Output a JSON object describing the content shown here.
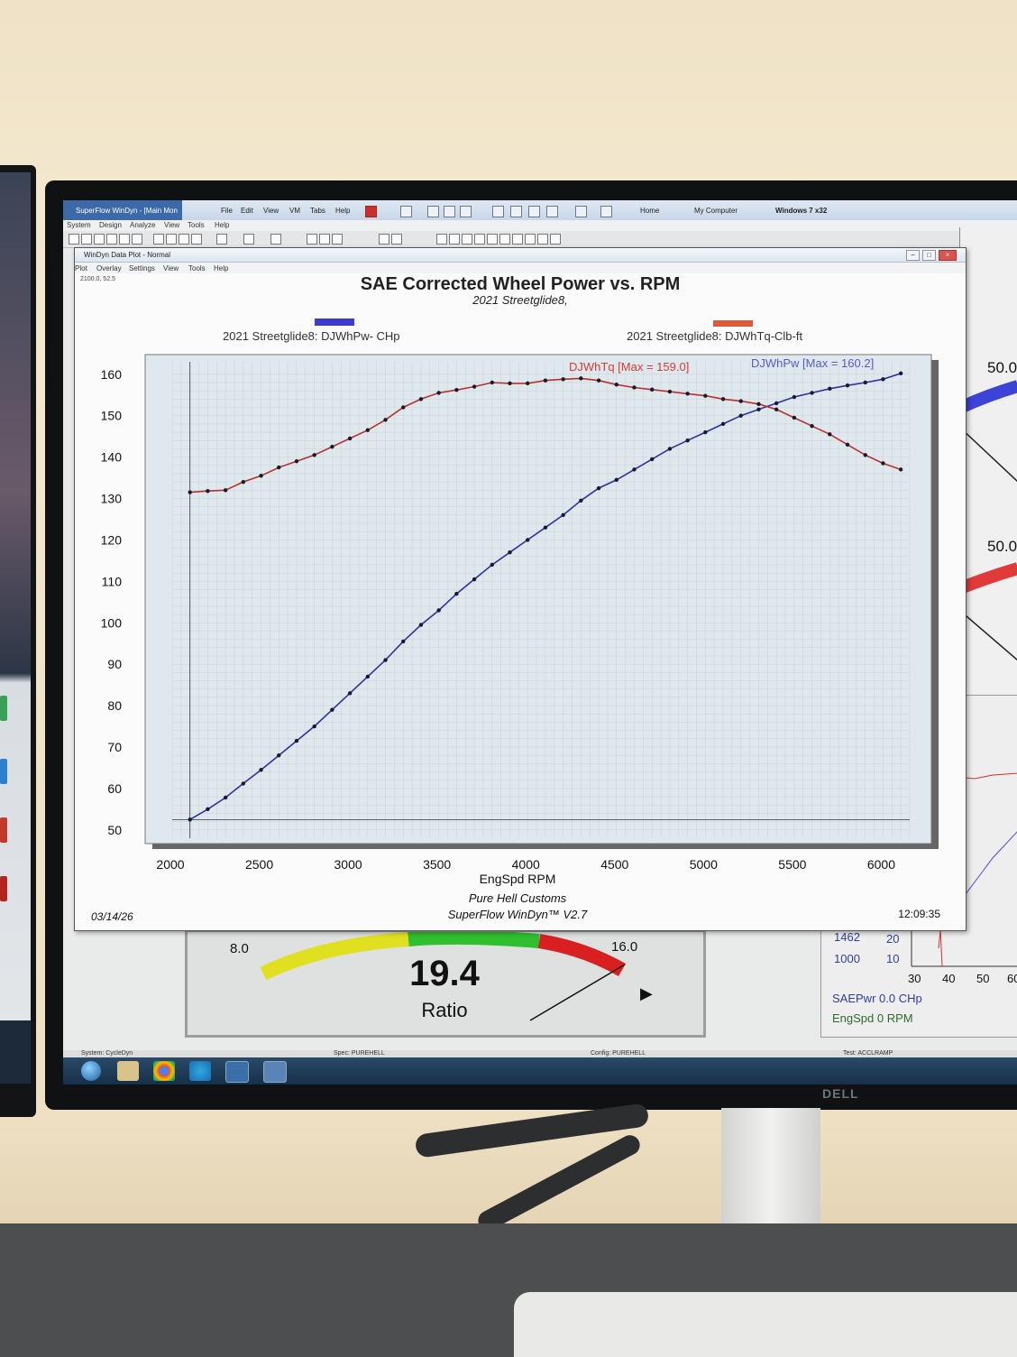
{
  "app": {
    "window_title": "SuperFlow WinDyn - [Main Mon",
    "menu": [
      "File",
      "Edit",
      "View",
      "VM",
      "Tabs",
      "Help"
    ],
    "submenu": [
      "System",
      "Design",
      "Analyze",
      "View",
      "Tools",
      "Help"
    ],
    "tabs": [
      "Home",
      "My Computer",
      "Windows 7 x32"
    ]
  },
  "plot_window": {
    "title": "WinDyn Data Plot - Normal",
    "menu": [
      "Plot",
      "Overlay",
      "Settings",
      "View",
      "Tools",
      "Help"
    ],
    "cursor_readout": "2100.0, 52.5",
    "date": "03/14/26",
    "time": "12:09:35",
    "footer_line1": "Pure Hell Customs",
    "footer_line2": "SuperFlow WinDyn™ V2.7"
  },
  "gauge": {
    "value": "19.4",
    "unit": "Ratio",
    "min_label": "8.0",
    "max_label": "16.0",
    "min": 8,
    "max": 16,
    "reading": 19.4
  },
  "side_panels": {
    "gauge_labels": [
      "50.0",
      "50.0"
    ],
    "small_chart": {
      "left_values": [
        "1462",
        "1000"
      ],
      "right_ticks": [
        "20",
        "10"
      ],
      "x_ticks": [
        "30",
        "40",
        "50",
        "60"
      ],
      "readout1": "SAEPwr 0.0  CHp",
      "readout2": "EngSpd 0  RPM"
    }
  },
  "status_row": [
    "System: CycleDyn",
    "Spec: PUREHELL",
    "Config: PUREHELL",
    "Test: ACCLRAMP"
  ],
  "colors": {
    "power": "#2b33a6",
    "torque": "#b8312f",
    "power_label": "#5a5ad0",
    "torque_label": "#d23c38",
    "plot_bg": "#dfe8ec",
    "grid": "#c9d3d8"
  },
  "chart_data": {
    "type": "line",
    "title": "SAE Corrected Wheel Power vs. RPM",
    "subtitle": "2021 Streetglide8,",
    "xlabel": "EngSpd  RPM",
    "ylabel": "",
    "xlim": [
      2000,
      6150
    ],
    "ylim": [
      48,
      163
    ],
    "x_ticks": [
      "2000",
      "2500",
      "3000",
      "3500",
      "4000",
      "4500",
      "5000",
      "5500",
      "6000"
    ],
    "y_ticks": [
      "50",
      "60",
      "70",
      "80",
      "90",
      "100",
      "110",
      "120",
      "130",
      "140",
      "150",
      "160"
    ],
    "legend": [
      {
        "label": "2021 Streetglide8: DJWhPw- CHp",
        "color": "#3b3bd0"
      },
      {
        "label": "2021 Streetglide8: DJWhTq-Clb-ft",
        "color": "#e05a3a"
      }
    ],
    "annotations": {
      "torque_max": "DJWhTq [Max = 159.0]",
      "power_max": "DJWhPw [Max = 160.2]"
    },
    "series": [
      {
        "name": "DJWhPw",
        "x": [
          2100,
          2200,
          2300,
          2400,
          2500,
          2600,
          2700,
          2800,
          2900,
          3000,
          3100,
          3200,
          3300,
          3400,
          3500,
          3600,
          3700,
          3800,
          3900,
          4000,
          4100,
          4200,
          4300,
          4400,
          4500,
          4600,
          4700,
          4800,
          4900,
          5000,
          5100,
          5200,
          5300,
          5400,
          5500,
          5600,
          5700,
          5800,
          5900,
          6000,
          6100
        ],
        "values": [
          52.5,
          55.0,
          57.8,
          61.2,
          64.5,
          68.0,
          71.5,
          75.0,
          79.0,
          83.0,
          87.0,
          91.0,
          95.5,
          99.5,
          103.0,
          107.0,
          110.5,
          114.0,
          117.0,
          120.0,
          123.0,
          126.0,
          129.5,
          132.5,
          134.5,
          137.0,
          139.5,
          142.0,
          144.0,
          146.0,
          148.0,
          150.0,
          151.5,
          153.0,
          154.5,
          155.5,
          156.5,
          157.3,
          158.0,
          158.8,
          160.2
        ]
      },
      {
        "name": "DJWhTq",
        "x": [
          2100,
          2200,
          2300,
          2400,
          2500,
          2600,
          2700,
          2800,
          2900,
          3000,
          3100,
          3200,
          3300,
          3400,
          3500,
          3600,
          3700,
          3800,
          3900,
          4000,
          4100,
          4200,
          4300,
          4400,
          4500,
          4600,
          4700,
          4800,
          4900,
          5000,
          5100,
          5200,
          5300,
          5400,
          5500,
          5600,
          5700,
          5800,
          5900,
          6000,
          6100
        ],
        "values": [
          131.5,
          131.8,
          132.0,
          134.0,
          135.5,
          137.5,
          139.0,
          140.5,
          142.5,
          144.5,
          146.5,
          149.0,
          152.0,
          154.0,
          155.5,
          156.2,
          157.0,
          158.0,
          157.8,
          157.8,
          158.5,
          158.8,
          159.0,
          158.5,
          157.5,
          156.8,
          156.3,
          155.8,
          155.3,
          154.8,
          154.0,
          153.5,
          152.8,
          151.5,
          149.5,
          147.5,
          145.5,
          143.0,
          140.5,
          138.5,
          137.0
        ]
      }
    ]
  }
}
